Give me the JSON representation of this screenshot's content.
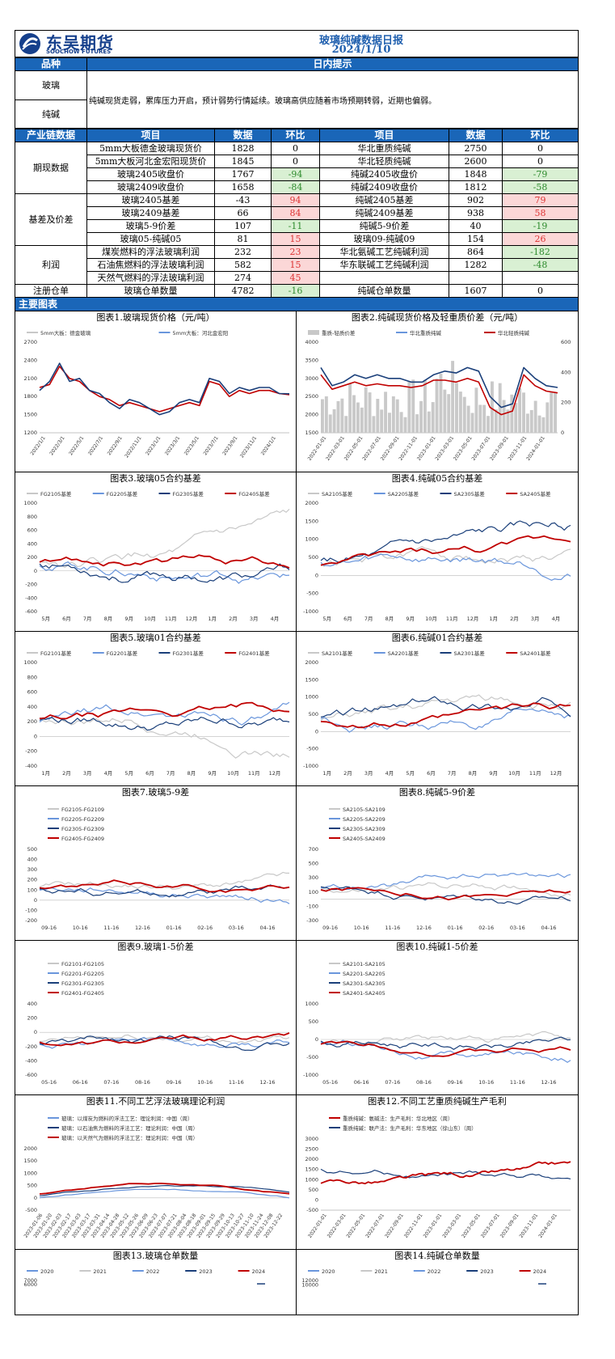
{
  "header": {
    "logo_cn": "东吴期货",
    "logo_en": "SOOCHOW FUTURES",
    "title": "玻璃纯碱数据日报",
    "date": "2024/1/10"
  },
  "tips": {
    "col1": "品种",
    "col2": "日内提示",
    "rows": [
      "玻璃",
      "纯碱"
    ],
    "text": "纯碱现货走弱，累库压力开启，预计弱势行情延续。玻璃高供应随着市场预期转弱，近期也偏弱。"
  },
  "table": {
    "headers": [
      "产业链数据",
      "项目",
      "数据",
      "环比",
      "项目",
      "数据",
      "环比"
    ],
    "groups": [
      {
        "name": "期现数据",
        "rows": [
          [
            "5mm大板德金玻璃现货价",
            "1828",
            "0",
            "华北重质纯碱",
            "2750",
            "0"
          ],
          [
            "5mm大板河北金宏阳现货价",
            "1845",
            "0",
            "华北轻质纯碱",
            "2600",
            "0"
          ],
          [
            "玻璃2405收盘价",
            "1767",
            "-94",
            "纯碱2405收盘价",
            "1848",
            "-79"
          ],
          [
            "玻璃2409收盘价",
            "1658",
            "-84",
            "纯碱2409收盘价",
            "1812",
            "-58"
          ]
        ]
      },
      {
        "name": "基差及价差",
        "rows": [
          [
            "玻璃2405基差",
            "-43",
            "94",
            "纯碱2405基差",
            "902",
            "79"
          ],
          [
            "玻璃2409基差",
            "66",
            "84",
            "纯碱2409基差",
            "938",
            "58"
          ],
          [
            "玻璃5-9价差",
            "107",
            "-11",
            "纯碱5-9价差",
            "40",
            "-19"
          ],
          [
            "玻璃05-纯碱05",
            "81",
            "15",
            "玻璃09-纯碱09",
            "154",
            "26"
          ]
        ]
      },
      {
        "name": "利润",
        "rows": [
          [
            "煤炭燃料的浮法玻璃利润",
            "232",
            "23",
            "华北氨碱工艺纯碱利润",
            "864",
            "-182"
          ],
          [
            "石油焦燃料的浮法玻璃利润",
            "582",
            "15",
            "华东联碱工艺纯碱利润",
            "1282",
            "-48"
          ],
          [
            "天然气燃料的浮法玻璃利润",
            "274",
            "45",
            "",
            "",
            ""
          ]
        ]
      },
      {
        "name": "注册仓单",
        "rows": [
          [
            "玻璃仓单数量",
            "4782",
            "-16",
            "纯碱仓单数量",
            "1607",
            "0"
          ]
        ]
      }
    ]
  },
  "section_title": "主要图表",
  "colors": {
    "dark": "#1a3f7a",
    "light": "#6a96dc",
    "gray": "#c8c8c8",
    "red": "#c00000",
    "header": "#1a66b8"
  },
  "chart_data": [
    {
      "id": 1,
      "title": "图表1.玻璃现货价格（元/吨）",
      "type": "line",
      "legend": [
        "5mm大板：德金玻璃",
        "5mm大板：河北金宏阳"
      ],
      "yticks": [
        "2700",
        "2400",
        "2100",
        "1800",
        "1500",
        "1200"
      ],
      "ylim": [
        1200,
        2700
      ],
      "xticks": [
        "2022/1/1",
        "2022/3/1",
        "2022/5/1",
        "2022/7/1",
        "2022/9/1",
        "2022/11/1",
        "2023/1/1",
        "2023/3/1",
        "2023/5/1",
        "2023/7/1",
        "2023/9/1",
        "2023/11/1",
        "2024/1/1"
      ],
      "series": [
        {
          "name": "5mm大板：德金玻璃",
          "color": "red",
          "values": [
            1950,
            2000,
            2300,
            2100,
            2050,
            1900,
            1800,
            1750,
            1650,
            1700,
            1650,
            1600,
            1550,
            1600,
            1650,
            1700,
            1650,
            2050,
            2000,
            1800,
            1900,
            1850,
            1900,
            1900,
            1850,
            1830
          ]
        },
        {
          "name": "5mm大板：河北金宏阳",
          "color": "dark",
          "values": [
            1900,
            2050,
            2350,
            2050,
            2100,
            1900,
            1850,
            1700,
            1600,
            1750,
            1700,
            1600,
            1500,
            1550,
            1700,
            1750,
            1700,
            2100,
            2050,
            1850,
            1950,
            1900,
            1950,
            1950,
            1850,
            1845
          ]
        }
      ]
    },
    {
      "id": 2,
      "title": "图表2.纯碱现货价格及轻重质价差（元/吨）",
      "type": "line",
      "legend": [
        "重质-轻质价差",
        "华北重质纯碱",
        "华北轻质纯碱"
      ],
      "yticks": [
        "4000",
        "3500",
        "3000",
        "2500",
        "2000",
        "1500"
      ],
      "ylim": [
        1500,
        4000
      ],
      "y2ticks": [
        "600",
        "400",
        "200",
        "0"
      ],
      "xticks": [
        "2022-01-01",
        "2022-03-01",
        "2022-05-01",
        "2022-07-01",
        "2022-09-01",
        "2022-11-01",
        "2023-01-01",
        "2023-03-01",
        "2023-05-01",
        "2023-07-01",
        "2023-09-01",
        "2023-11-01",
        "2024-01-01"
      ],
      "series": [
        {
          "name": "华北重质纯碱",
          "color": "dark",
          "values": [
            3300,
            2800,
            2900,
            3100,
            3000,
            3100,
            3000,
            3000,
            2900,
            2900,
            3100,
            3200,
            3150,
            3300,
            3200,
            2500,
            2200,
            2300,
            3300,
            3000,
            2800,
            2750
          ]
        },
        {
          "name": "华北轻质纯碱",
          "color": "red",
          "values": [
            3100,
            2700,
            2800,
            2900,
            2800,
            2850,
            2800,
            2800,
            2750,
            2800,
            2950,
            2950,
            2900,
            3000,
            2900,
            2200,
            2000,
            2100,
            3100,
            2800,
            2650,
            2600
          ]
        }
      ]
    },
    {
      "id": 3,
      "title": "图表3.玻璃05合约基差",
      "type": "line",
      "legend": [
        "FG2105基差",
        "FG2205基差",
        "FG2305基差",
        "FG2405基差"
      ],
      "yticks": [
        "1000",
        "800",
        "600",
        "400",
        "200",
        "0",
        "-200",
        "-400",
        "-600"
      ],
      "ylim": [
        -600,
        1000
      ],
      "xticks": [
        "5月",
        "6月",
        "7月",
        "8月",
        "9月",
        "10月",
        "11月",
        "12月",
        "1月",
        "2月",
        "3月",
        "4月"
      ]
    },
    {
      "id": 4,
      "title": "图表4.纯碱05合约基差",
      "type": "line",
      "legend": [
        "SA2105基差",
        "SA2205基差",
        "SA2305基差",
        "SA2405基差"
      ],
      "yticks": [
        "2000",
        "1500",
        "1000",
        "500",
        "0",
        "-500",
        "-1000"
      ],
      "ylim": [
        -1000,
        2000
      ],
      "xticks": [
        "5月",
        "6月",
        "7月",
        "8月",
        "9月",
        "10月",
        "11月",
        "12月",
        "1月",
        "2月",
        "3月",
        "4月"
      ]
    },
    {
      "id": 5,
      "title": "图表5.玻璃01合约基差",
      "type": "line",
      "legend": [
        "FG2101基差",
        "FG2201基差",
        "FG2301基差",
        "FG2401基差"
      ],
      "yticks": [
        "1000",
        "800",
        "600",
        "400",
        "200",
        "0",
        "-200",
        "-400"
      ],
      "ylim": [
        -400,
        1000
      ],
      "xticks": [
        "1月",
        "2月",
        "3月",
        "4月",
        "5月",
        "6月",
        "7月",
        "8月",
        "9月",
        "10月",
        "11月",
        "12月"
      ]
    },
    {
      "id": 6,
      "title": "图表6.纯碱01合约基差",
      "type": "line",
      "legend": [
        "SA2101基差",
        "SA2201基差",
        "SA2301基差",
        "SA2401基差"
      ],
      "yticks": [
        "2000",
        "1500",
        "1000",
        "500",
        "0",
        "-500",
        "-1000"
      ],
      "ylim": [
        -1000,
        2000
      ],
      "xticks": [
        "1月",
        "2月",
        "3月",
        "4月",
        "5月",
        "6月",
        "7月",
        "8月",
        "9月",
        "10月",
        "11月",
        "12月"
      ]
    },
    {
      "id": 7,
      "title": "图表7.玻璃5-9差",
      "type": "line",
      "legend": [
        "FG2105-FG2109",
        "FG2205-FG2209",
        "FG2305-FG2309",
        "FG2405-FG2409"
      ],
      "yticks": [
        "500",
        "400",
        "300",
        "200",
        "100",
        "0",
        "-100",
        "-200"
      ],
      "ylim": [
        -200,
        500
      ],
      "xticks": [
        "09-16",
        "10-16",
        "11-16",
        "12-16",
        "01-16",
        "02-16",
        "03-16",
        "04-16"
      ]
    },
    {
      "id": 8,
      "title": "图表8.纯碱5-9价差",
      "type": "line",
      "legend": [
        "SA2105-SA2109",
        "SA2205-SA2209",
        "SA2305-SA2309",
        "SA2405-SA2409"
      ],
      "yticks": [
        "700",
        "500",
        "300",
        "100",
        "-100",
        "-300"
      ],
      "ylim": [
        -300,
        700
      ],
      "xticks": [
        "09-16",
        "10-16",
        "11-16",
        "12-16",
        "01-16",
        "02-16",
        "03-16",
        "04-16"
      ]
    },
    {
      "id": 9,
      "title": "图表9.玻璃1-5价差",
      "type": "line",
      "legend": [
        "FG2101-FG2105",
        "FG2201-FG2205",
        "FG2301-FG2305",
        "FG2401-FG2405"
      ],
      "yticks": [
        "400",
        "200",
        "0",
        "-200",
        "-400",
        "-600"
      ],
      "ylim": [
        -600,
        400
      ],
      "xticks": [
        "05-16",
        "06-16",
        "07-16",
        "08-16",
        "09-16",
        "10-16",
        "11-16",
        "12-16"
      ]
    },
    {
      "id": 10,
      "title": "图表10.纯碱1-5价差",
      "type": "line",
      "legend": [
        "SA2101-SA2105",
        "SA2201-SA2205",
        "SA2301-SA2305",
        "SA2401-SA2405"
      ],
      "yticks": [
        "1000",
        "500",
        "0",
        "-500",
        "-1000"
      ],
      "ylim": [
        -1000,
        1000
      ],
      "xticks": [
        "05-16",
        "06-16",
        "07-16",
        "08-16",
        "09-16",
        "10-16",
        "11-16",
        "12-16"
      ]
    },
    {
      "id": 11,
      "title": "图表11.不同工艺浮法玻璃理论利润",
      "type": "line",
      "legend": [
        "玻璃：以煤炭为燃料的浮法工艺：理论利润：中国（周）",
        "玻璃：以石油焦为燃料的浮法工艺：理论利润：中国（周）",
        "玻璃：以天然气为燃料的浮法工艺：理论利润：中国（周）"
      ],
      "yticks": [
        "2000",
        "1500",
        "1000",
        "500",
        "0",
        "-500"
      ],
      "ylim": [
        -500,
        2000
      ],
      "xticks": [
        "2023-01-06",
        "2023-01-20",
        "2023-02-03",
        "2023-02-17",
        "2023-03-03",
        "2023-03-17",
        "2023-03-31",
        "2023-04-14",
        "2023-04-28",
        "2023-05-12",
        "2023-05-26",
        "2023-06-09",
        "2023-06-23",
        "2023-07-07",
        "2023-07-21",
        "2023-08-04",
        "2023-08-18",
        "2023-09-01",
        "2023-09-15",
        "2023-09-29",
        "2023-10-13",
        "2023-10-27",
        "2023-11-10",
        "2023-11-24",
        "2023-12-08",
        "2023-12-22"
      ]
    },
    {
      "id": 12,
      "title": "图表12.不同工艺重质纯碱生产毛利",
      "type": "line",
      "legend": [
        "重质纯碱：氨碱法：生产毛利：华北地区（周）",
        "重质纯碱：联产法：生产毛利：华东地区（徐山东）（周）"
      ],
      "yticks": [
        "3000",
        "2500",
        "2000",
        "1500",
        "1000",
        "500",
        "0",
        "-500"
      ],
      "ylim": [
        -500,
        3000
      ],
      "xticks": [
        "2022-01-01",
        "2022-03-01",
        "2022-05-01",
        "2022-07-01",
        "2022-09-01",
        "2022-11-01",
        "2023-01-01",
        "2023-03-01",
        "2023-05-01",
        "2023-07-01",
        "2023-09-01",
        "2023-11-01",
        "2024-01-01"
      ]
    },
    {
      "id": 13,
      "title": "图表13.玻璃仓单数量",
      "type": "line",
      "legend": [
        "2020",
        "2021",
        "2022",
        "2023",
        "2024"
      ],
      "yticks": [
        "7000",
        "6000"
      ],
      "ylim": [
        0,
        7000
      ]
    },
    {
      "id": 14,
      "title": "图表14.纯碱仓单数量",
      "type": "line",
      "legend": [
        "2020",
        "2021",
        "2022",
        "2023",
        "2024"
      ],
      "yticks": [
        "12000",
        "10000"
      ],
      "ylim": [
        0,
        12000
      ]
    }
  ]
}
